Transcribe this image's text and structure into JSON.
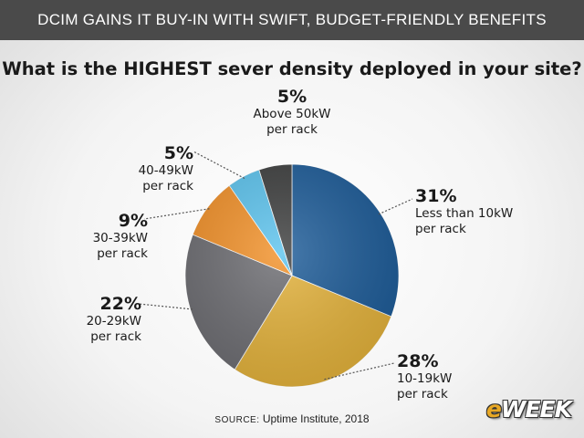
{
  "header": {
    "title": "DCIM GAINS IT BUY-IN WITH SWIFT, BUDGET-FRIENDLY BENEFITS"
  },
  "source": {
    "label": "SOURCE:",
    "text": "Uptime Institute, 2018"
  },
  "logo": {
    "e": "e",
    "rest": "WEEK"
  },
  "colors": {
    "background": "#f4f4f4",
    "header": "#4a4a4a"
  },
  "chart_data": {
    "type": "pie",
    "title": "What is the HIGHEST sever density deployed in your site?",
    "start_angle_deg": 0,
    "direction": "clockwise",
    "slices": [
      {
        "label": "Less than 10kW\nper rack",
        "value": 31,
        "display": "31%",
        "color": "#1f5d99"
      },
      {
        "label": "10-19kW\nper rack",
        "value": 28,
        "display": "28%",
        "color": "#e4b33d"
      },
      {
        "label": "20-29kW\nper rack",
        "value": 22,
        "display": "22%",
        "color": "#6e6e73"
      },
      {
        "label": "30-39kW\nper rack",
        "value": 9,
        "display": "9%",
        "color": "#f2922b"
      },
      {
        "label": "40-49kW\nper rack",
        "value": 5,
        "display": "5%",
        "color": "#5ec4ee"
      },
      {
        "label": "Above 50kW\nper rack",
        "value": 5,
        "display": "5%",
        "color": "#3f4040"
      }
    ]
  }
}
